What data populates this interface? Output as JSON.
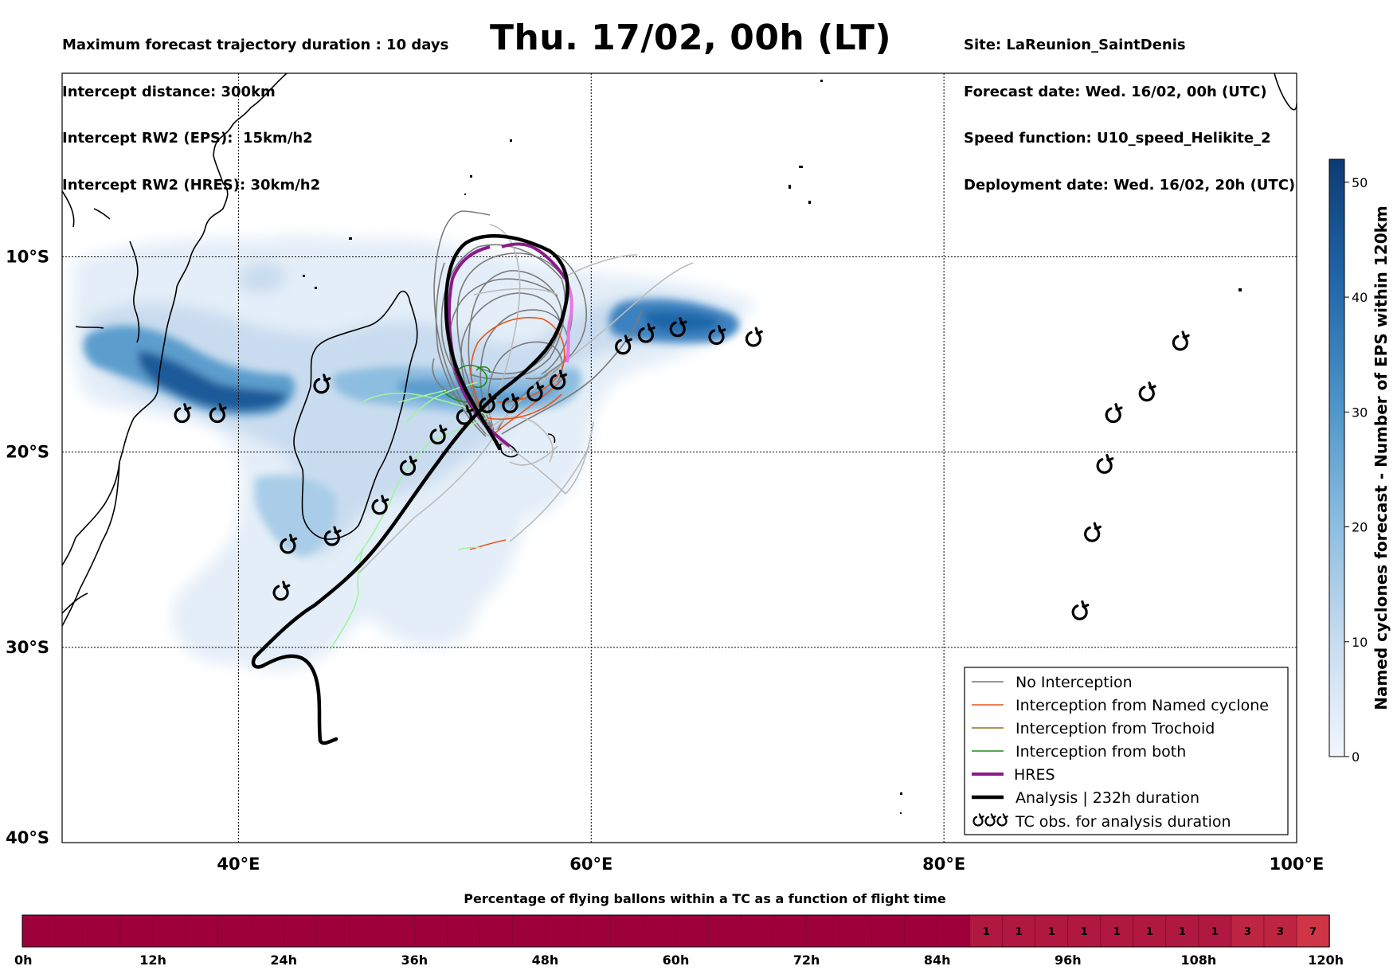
{
  "header": {
    "left_lines": [
      "Maximum forecast trajectory duration : 10 days",
      "Intercept distance: 300km",
      "Intercept RW2 (EPS):  15km/h2",
      "Intercept RW2 (HRES): 30km/h2"
    ],
    "title": "Thu. 17/02, 00h (LT)",
    "right_lines": [
      "Site: LaReunion_SaintDenis",
      "Forecast date: Wed. 16/02, 00h (UTC)",
      "Speed function: U10_speed_Helikite_2",
      "Deployment date: Wed. 16/02, 20h (UTC)"
    ]
  },
  "map": {
    "lon_range": [
      30,
      100
    ],
    "lat_range": [
      -40,
      -0.6
    ],
    "x_ticks": [
      {
        "value": 40,
        "label": "40°E"
      },
      {
        "value": 60,
        "label": "60°E"
      },
      {
        "value": 80,
        "label": "80°E"
      },
      {
        "value": 100,
        "label": "100°E"
      }
    ],
    "y_ticks": [
      {
        "value": -10,
        "label": "10°S"
      },
      {
        "value": -20,
        "label": "20°S"
      },
      {
        "value": -30,
        "label": "30°S"
      },
      {
        "value": -40,
        "label": "40°S"
      }
    ],
    "grid": true
  },
  "colorbar": {
    "label": "Named cyclones forecast - Number of EPS within 120km",
    "ticks": [
      0,
      10,
      20,
      30,
      40,
      50
    ],
    "range": [
      0,
      52
    ]
  },
  "legend": {
    "items": [
      {
        "label": "No Interception",
        "color": "#777777"
      },
      {
        "label": "Interception from Named cyclone",
        "color": "#e8541c"
      },
      {
        "label": "Interception from Trochoid",
        "color": "#7f7a1a"
      },
      {
        "label": "Interception from both",
        "color": "#1a8c1a"
      },
      {
        "label": "HRES",
        "color": "#8b1a8b"
      },
      {
        "label": "Analysis | 232h duration",
        "color": "#000000"
      },
      {
        "label": "TC obs. for analysis duration",
        "icon": "cyclone-symbol-icon"
      }
    ]
  },
  "tc_observations": [
    [
      36.8,
      -18.1
    ],
    [
      38.8,
      -18.1
    ],
    [
      42.4,
      -27.2
    ],
    [
      42.8,
      -24.8
    ],
    [
      44.7,
      -16.6
    ],
    [
      45.3,
      -24.4
    ],
    [
      48.0,
      -22.8
    ],
    [
      49.6,
      -20.8
    ],
    [
      51.3,
      -19.2
    ],
    [
      52.8,
      -18.2
    ],
    [
      54.1,
      -17.6
    ],
    [
      55.4,
      -17.6
    ],
    [
      56.8,
      -17.0
    ],
    [
      58.1,
      -16.4
    ],
    [
      61.8,
      -14.6
    ],
    [
      63.1,
      -14.0
    ],
    [
      64.9,
      -13.7
    ],
    [
      67.1,
      -14.1
    ],
    [
      69.2,
      -14.2
    ],
    [
      93.4,
      -14.4
    ],
    [
      91.5,
      -17.0
    ],
    [
      89.6,
      -18.1
    ],
    [
      89.1,
      -20.7
    ],
    [
      88.4,
      -24.2
    ],
    [
      87.7,
      -28.2
    ]
  ],
  "flight_time_bar": {
    "title": "Percentage of flying ballons within a TC as a function of flight time",
    "ticks": [
      "0h",
      "12h",
      "24h",
      "36h",
      "48h",
      "60h",
      "72h",
      "84h",
      "96h",
      "108h",
      "120h"
    ],
    "hours_per_cell": 3,
    "values": [
      0,
      0,
      0,
      0,
      0,
      0,
      0,
      0,
      0,
      0,
      0,
      0,
      0,
      0,
      0,
      0,
      0,
      0,
      0,
      0,
      0,
      0,
      0,
      0,
      0,
      0,
      0,
      0,
      0,
      1,
      1,
      1,
      1,
      1,
      1,
      1,
      1,
      3,
      3,
      7
    ],
    "base_color": "#9e003a",
    "color_low": "#b0183f",
    "color_mid": "#bd2540",
    "color_high": "#d03546"
  }
}
